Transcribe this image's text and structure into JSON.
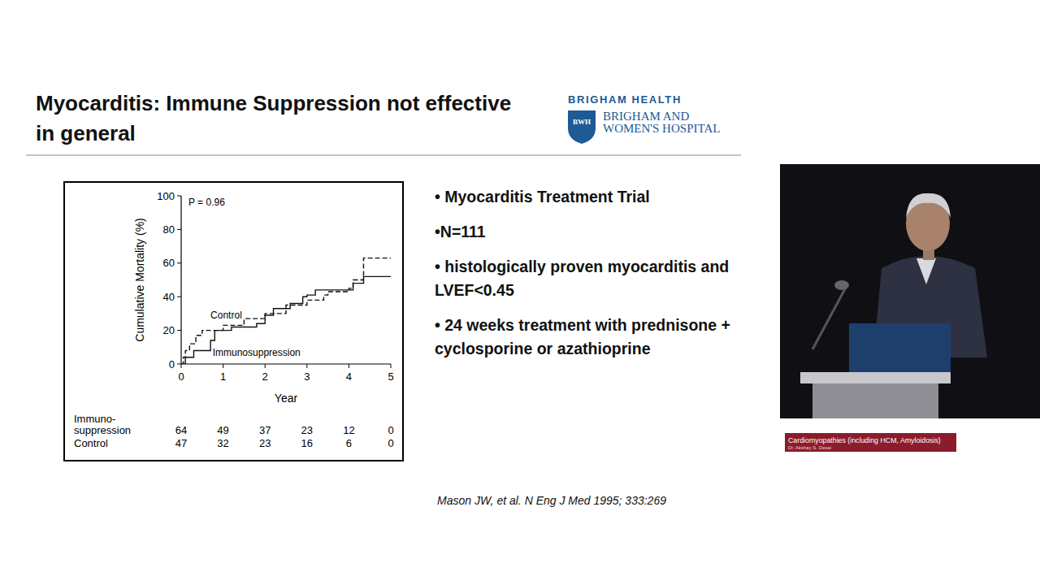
{
  "slide": {
    "title": "Myocarditis: Immune Suppression not effective in general",
    "logo": {
      "brand": "BRIGHAM HEALTH",
      "badge": "BWH",
      "name_lines": [
        "BRIGHAM AND",
        "WOMEN'S HOSPITAL"
      ]
    },
    "bullets": [
      "• Myocarditis Treatment Trial",
      "•N=111",
      "• histologically proven myocarditis and LVEF<0.45",
      "• 24 weeks treatment with prednisone + cyclosporine or azathioprine"
    ],
    "citation": "Mason JW, et al.  N Eng J Med 1995; 333:269",
    "caption": {
      "title": "Cardiomyopathies (including HCM, Amyloidosis)",
      "speaker": "Dr. Akshay S. Desai"
    }
  },
  "chart_data": {
    "type": "step",
    "x_label": "Year",
    "y_label": "Cumulative Mortality (%)",
    "annotation": "P = 0.96",
    "xlim": [
      0,
      5
    ],
    "ylim": [
      0,
      100
    ],
    "xticks": [
      0,
      1,
      2,
      3,
      4,
      5
    ],
    "yticks": [
      0,
      20,
      40,
      60,
      80,
      100
    ],
    "grid": false,
    "series": [
      {
        "name": "Control",
        "color": "#111111",
        "line_style": "dashed",
        "x": [
          0,
          0.05,
          0.1,
          0.2,
          0.35,
          0.5,
          1.0,
          1.5,
          2.0,
          2.5,
          3.0,
          3.4,
          3.5,
          4.0,
          4.1,
          4.35,
          5.0
        ],
        "values": [
          0,
          4,
          8,
          12,
          17,
          20,
          23,
          27,
          30,
          35,
          38,
          41,
          43,
          45,
          50,
          63,
          63
        ]
      },
      {
        "name": "Immunosuppression",
        "color": "#111111",
        "line_style": "solid",
        "x": [
          0,
          0.1,
          0.3,
          0.7,
          0.8,
          1.2,
          1.8,
          2.0,
          2.2,
          2.6,
          2.9,
          3.0,
          3.2,
          4.0,
          4.1,
          4.35,
          5.0
        ],
        "values": [
          0,
          4,
          8,
          14,
          20,
          22,
          24,
          29,
          33,
          36,
          40,
          41,
          44,
          44,
          48,
          52,
          52
        ]
      }
    ],
    "risk_table": {
      "x": [
        0,
        1,
        2,
        3,
        4,
        5
      ],
      "rows": [
        {
          "label": "Immuno-\nsuppression",
          "values": [
            64,
            49,
            37,
            23,
            12,
            0
          ]
        },
        {
          "label": "Control",
          "values": [
            47,
            32,
            23,
            16,
            6,
            0
          ]
        }
      ]
    }
  }
}
